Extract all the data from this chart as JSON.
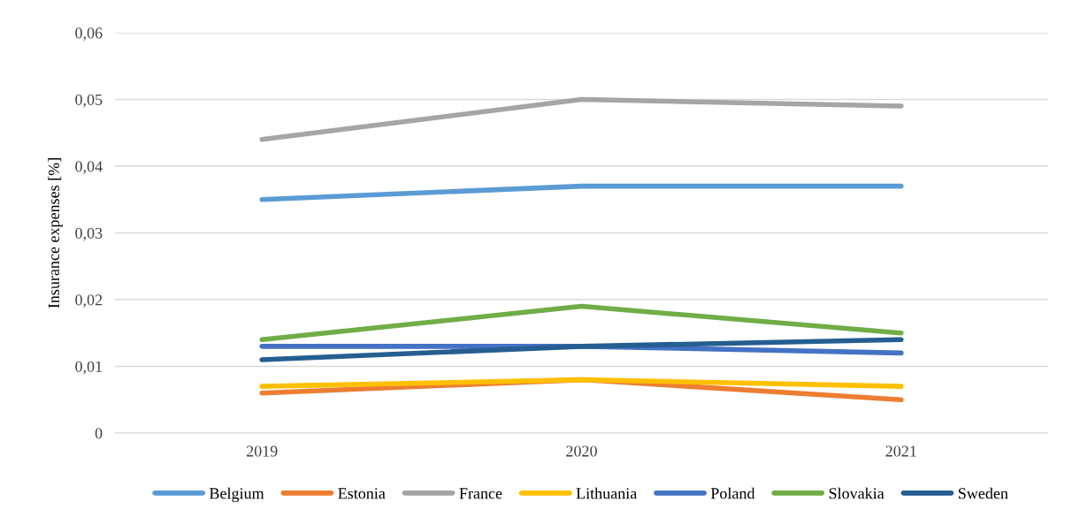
{
  "chart_data": {
    "type": "line",
    "ylabel": "Insurance expenses [%]",
    "categories": [
      "2019",
      "2020",
      "2021"
    ],
    "series": [
      {
        "name": "Belgium",
        "color": "#5b9bd5",
        "values": [
          0.035,
          0.037,
          0.037
        ]
      },
      {
        "name": "Estonia",
        "color": "#ed7d31",
        "values": [
          0.006,
          0.008,
          0.005
        ]
      },
      {
        "name": "France",
        "color": "#a5a5a5",
        "values": [
          0.044,
          0.05,
          0.049
        ]
      },
      {
        "name": "Lithuania",
        "color": "#ffc000",
        "values": [
          0.007,
          0.008,
          0.007
        ]
      },
      {
        "name": "Poland",
        "color": "#4472c4",
        "values": [
          0.013,
          0.013,
          0.012
        ]
      },
      {
        "name": "Slovakia",
        "color": "#70ad47",
        "values": [
          0.014,
          0.019,
          0.015
        ]
      },
      {
        "name": "Sweden",
        "color": "#255e91",
        "values": [
          0.011,
          0.013,
          0.014
        ]
      }
    ],
    "ylim": [
      0,
      0.06
    ],
    "yticks": [
      0,
      {
        "value": 0.01,
        "label": "0,01"
      },
      {
        "value": 0.02,
        "label": "0,02"
      },
      {
        "value": 0.03,
        "label": "0,03"
      },
      {
        "value": 0.04,
        "label": "0,04"
      },
      {
        "value": 0.05,
        "label": "0,05"
      },
      {
        "value": 0.06,
        "label": "0,06"
      }
    ],
    "grid": "y",
    "legend": "bottom",
    "marker": "none",
    "line_style": "solid"
  }
}
